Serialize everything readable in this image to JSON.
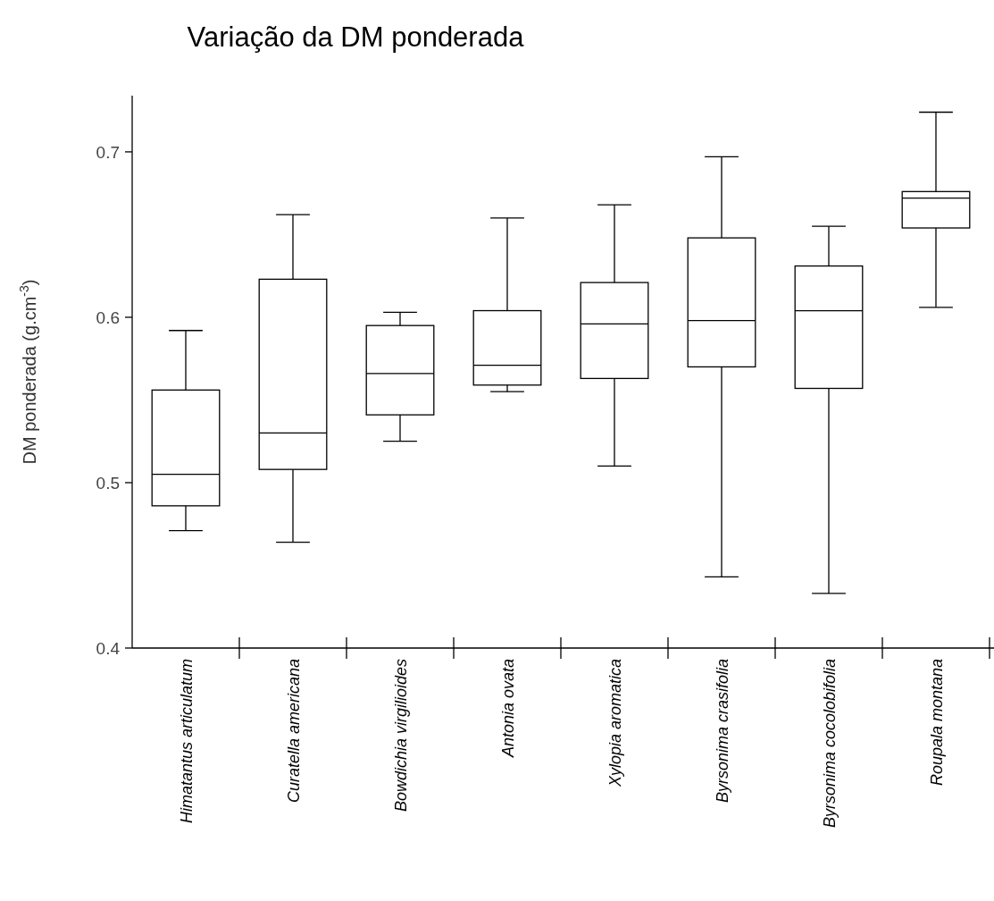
{
  "chart_data": {
    "type": "box",
    "title": "Variação da DM ponderada",
    "ylabel": "DM ponderada (g.cm$^{-3}$)",
    "categories": [
      "Himatantus articulatum",
      "Curatella americana",
      "Bowdichia virgilioides",
      "Antonia ovata",
      "Xylopia aromatica",
      "Byrsonima crasifolia",
      "Byrsonima cocolobifolia",
      "Roupala montana"
    ],
    "boxes": [
      {
        "low": 0.471,
        "q1": 0.486,
        "median": 0.505,
        "q3": 0.556,
        "high": 0.592
      },
      {
        "low": 0.464,
        "q1": 0.508,
        "median": 0.53,
        "q3": 0.623,
        "high": 0.662
      },
      {
        "low": 0.525,
        "q1": 0.541,
        "median": 0.566,
        "q3": 0.595,
        "high": 0.603
      },
      {
        "low": 0.555,
        "q1": 0.559,
        "median": 0.571,
        "q3": 0.604,
        "high": 0.66
      },
      {
        "low": 0.51,
        "q1": 0.563,
        "median": 0.596,
        "q3": 0.621,
        "high": 0.668
      },
      {
        "low": 0.443,
        "q1": 0.57,
        "median": 0.598,
        "q3": 0.648,
        "high": 0.697
      },
      {
        "low": 0.433,
        "q1": 0.557,
        "median": 0.604,
        "q3": 0.631,
        "high": 0.655
      },
      {
        "low": 0.606,
        "q1": 0.654,
        "median": 0.672,
        "q3": 0.676,
        "high": 0.724
      }
    ],
    "ylim": [
      0.4,
      0.734
    ],
    "yticks": [
      0.4,
      0.5,
      0.6,
      0.7
    ],
    "grid": false
  }
}
